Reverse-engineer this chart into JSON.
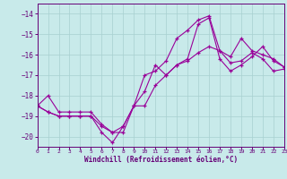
{
  "xlabel": "Windchill (Refroidissement éolien,°C)",
  "xlim": [
    0,
    23
  ],
  "ylim": [
    -20.5,
    -13.5
  ],
  "yticks": [
    -20,
    -19,
    -18,
    -17,
    -16,
    -15,
    -14
  ],
  "xticks": [
    0,
    1,
    2,
    3,
    4,
    5,
    6,
    7,
    8,
    9,
    10,
    11,
    12,
    13,
    14,
    15,
    16,
    17,
    18,
    19,
    20,
    21,
    22,
    23
  ],
  "bg_color": "#c8eaea",
  "grid_color": "#a8d0d0",
  "line_color": "#990099",
  "line1_y": [
    -18.5,
    -18.0,
    -18.8,
    -18.8,
    -18.8,
    -18.8,
    -19.4,
    -19.8,
    -19.5,
    -18.5,
    -17.0,
    -16.8,
    -16.3,
    -15.2,
    -14.8,
    -14.3,
    -14.1,
    -15.8,
    -16.1,
    -15.2,
    -15.8,
    -16.0,
    -16.2,
    -16.6
  ],
  "line2_y": [
    -18.5,
    -18.8,
    -19.0,
    -19.0,
    -19.0,
    -19.0,
    -19.5,
    -19.8,
    -19.8,
    -18.5,
    -17.8,
    -16.5,
    -17.0,
    -16.5,
    -16.3,
    -15.9,
    -15.6,
    -15.8,
    -16.4,
    -16.3,
    -15.9,
    -16.2,
    -16.8,
    -16.7
  ],
  "line3_y": [
    -18.5,
    -18.8,
    -19.0,
    -19.0,
    -19.0,
    -19.0,
    -19.8,
    -20.3,
    -19.5,
    -18.5,
    -18.5,
    -17.5,
    -17.0,
    -16.5,
    -16.2,
    -14.5,
    -14.2,
    -16.2,
    -16.8,
    -16.5,
    -16.1,
    -15.6,
    -16.3,
    -16.6
  ]
}
